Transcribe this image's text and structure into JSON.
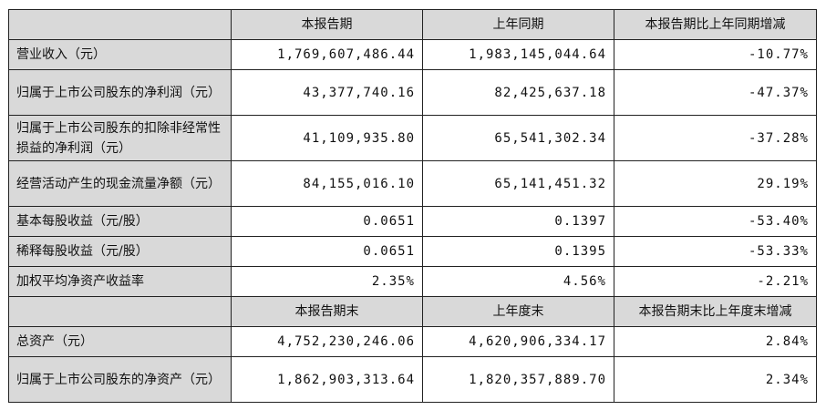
{
  "header1": [
    "",
    "本报告期",
    "上年同期",
    "本报告期比上年同期增减"
  ],
  "rows1": [
    {
      "label": "营业收入（元）",
      "current": "1,769,607,486.44",
      "previous": "1,983,145,044.64",
      "change": "-10.77%"
    },
    {
      "label": "归属于上市公司股东的净利润（元）",
      "current": "43,377,740.16",
      "previous": "82,425,637.18",
      "change": "-47.37%"
    },
    {
      "label": "归属于上市公司股东的扣除非经常性损益的净利润（元）",
      "current": "41,109,935.80",
      "previous": "65,541,302.34",
      "change": "-37.28%"
    },
    {
      "label": "经营活动产生的现金流量净额（元）",
      "current": "84,155,016.10",
      "previous": "65,141,451.32",
      "change": "29.19%"
    },
    {
      "label": "基本每股收益（元/股）",
      "current": "0.0651",
      "previous": "0.1397",
      "change": "-53.40%"
    },
    {
      "label": "稀释每股收益（元/股）",
      "current": "0.0651",
      "previous": "0.1395",
      "change": "-53.33%"
    },
    {
      "label": "加权平均净资产收益率",
      "current": "2.35%",
      "previous": "4.56%",
      "change": "-2.21%"
    }
  ],
  "header2": [
    "",
    "本报告期末",
    "上年度末",
    "本报告期末比上年度末增减"
  ],
  "rows2": [
    {
      "label": "总资产（元）",
      "current": "4,752,230,246.06",
      "previous": "4,620,906,334.17",
      "change": "2.84%"
    },
    {
      "label": "归属于上市公司股东的净资产（元）",
      "current": "1,862,903,313.64",
      "previous": "1,820,357,889.70",
      "change": "2.34%"
    }
  ]
}
